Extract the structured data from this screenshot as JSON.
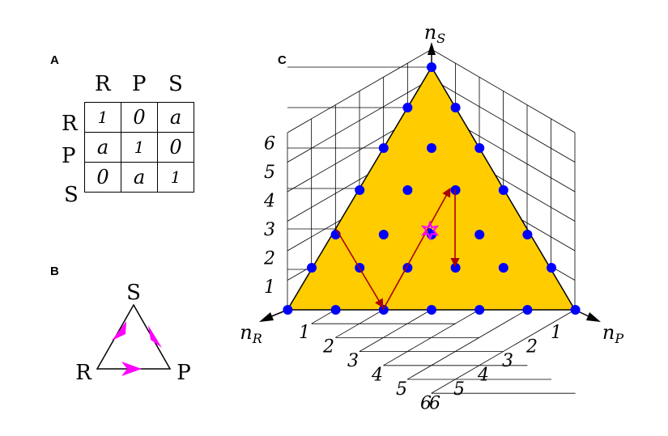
{
  "panels": {
    "a": "A",
    "b": "B",
    "c": "C"
  },
  "matrix": {
    "col_headers": [
      "R",
      "P",
      "S"
    ],
    "row_headers": [
      "R",
      "P",
      "S"
    ],
    "rows": [
      [
        "1",
        "0",
        "a"
      ],
      [
        "a",
        "1",
        "0"
      ],
      [
        "0",
        "a",
        "1"
      ]
    ]
  },
  "cycle": {
    "top": "S",
    "left": "R",
    "right": "P"
  },
  "simplex": {
    "axis_s": "n",
    "axis_s_sub": "S",
    "axis_r": "n",
    "axis_r_sub": "R",
    "axis_p": "n",
    "axis_p_sub": "P",
    "ticks_s": [
      "1",
      "2",
      "3",
      "4",
      "5",
      "6"
    ],
    "ticks_r": [
      "1",
      "2",
      "3",
      "4",
      "5",
      "6"
    ],
    "ticks_p": [
      "1",
      "2",
      "3",
      "4",
      "5",
      "6"
    ],
    "colors": {
      "fill": "#ffcc00",
      "dot": "#0000ff",
      "arrow": "#aa0000",
      "cycle_arrow": "#ff00ff",
      "star": "#ff00ff"
    }
  }
}
